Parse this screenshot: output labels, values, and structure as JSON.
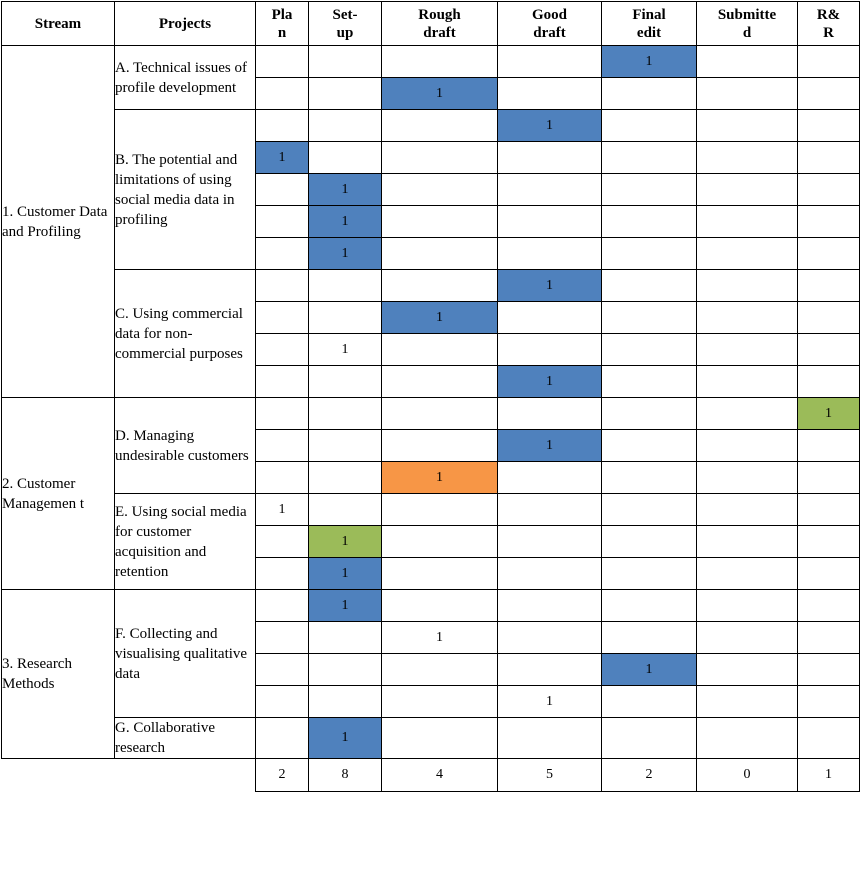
{
  "columns": [
    "Stream",
    "Projects",
    "Pla\nn",
    "Set-\nup",
    "Rough\ndraft",
    "Good\ndraft",
    "Final\nedit",
    "Submitte\nd",
    "R&\nR"
  ],
  "colors": {
    "blue": "#4f81bd",
    "green": "#9bbb59",
    "orange": "#f79646"
  },
  "streams": [
    {
      "label": "1. Customer Data and Profiling",
      "rowspan": 11
    },
    {
      "label": "2. Customer Managemen t",
      "rowspan": 6
    },
    {
      "label": "3. Research Methods",
      "rowspan": 5
    }
  ],
  "projects": [
    {
      "label": "A. Technical issues of profile development",
      "rowspan": 2
    },
    {
      "label": "B. The potential and limitations of using social media data in profiling",
      "rowspan": 5
    },
    {
      "label": "C. Using commercial data for non-commercial purposes",
      "rowspan": 4
    },
    {
      "label": "D. Managing undesirable customers",
      "rowspan": 3
    },
    {
      "label": "E. Using social media for customer acquisition and retention",
      "rowspan": 3
    },
    {
      "label": "F. Collecting and visualising qualitative data",
      "rowspan": 4
    },
    {
      "label": "G. Collaborative research",
      "rowspan": 1
    }
  ],
  "rows": [
    {
      "col": 4,
      "value": "1",
      "color": "blue"
    },
    {
      "col": 2,
      "value": "1",
      "color": "blue"
    },
    {
      "col": 3,
      "value": "1",
      "color": "blue"
    },
    {
      "col": 0,
      "value": "1",
      "color": "blue"
    },
    {
      "col": 1,
      "value": "1",
      "color": "blue"
    },
    {
      "col": 1,
      "value": "1",
      "color": "blue"
    },
    {
      "col": 1,
      "value": "1",
      "color": "blue"
    },
    {
      "col": 3,
      "value": "1",
      "color": "blue"
    },
    {
      "col": 2,
      "value": "1",
      "color": "blue"
    },
    {
      "col": 1,
      "value": "1",
      "color": ""
    },
    {
      "col": 3,
      "value": "1",
      "color": "blue"
    },
    {
      "col": 6,
      "value": "1",
      "color": "green"
    },
    {
      "col": 3,
      "value": "1",
      "color": "blue"
    },
    {
      "col": 2,
      "value": "1",
      "color": "orange"
    },
    {
      "col": 0,
      "value": "1",
      "color": ""
    },
    {
      "col": 1,
      "value": "1",
      "color": "green"
    },
    {
      "col": 1,
      "value": "1",
      "color": "blue"
    },
    {
      "col": 1,
      "value": "1",
      "color": "blue"
    },
    {
      "col": 2,
      "value": "1",
      "color": ""
    },
    {
      "col": 4,
      "value": "1",
      "color": "blue"
    },
    {
      "col": 3,
      "value": "1",
      "color": ""
    },
    {
      "col": 1,
      "value": "1",
      "color": "blue"
    }
  ],
  "totals": [
    "2",
    "8",
    "4",
    "5",
    "2",
    "0",
    "1"
  ]
}
